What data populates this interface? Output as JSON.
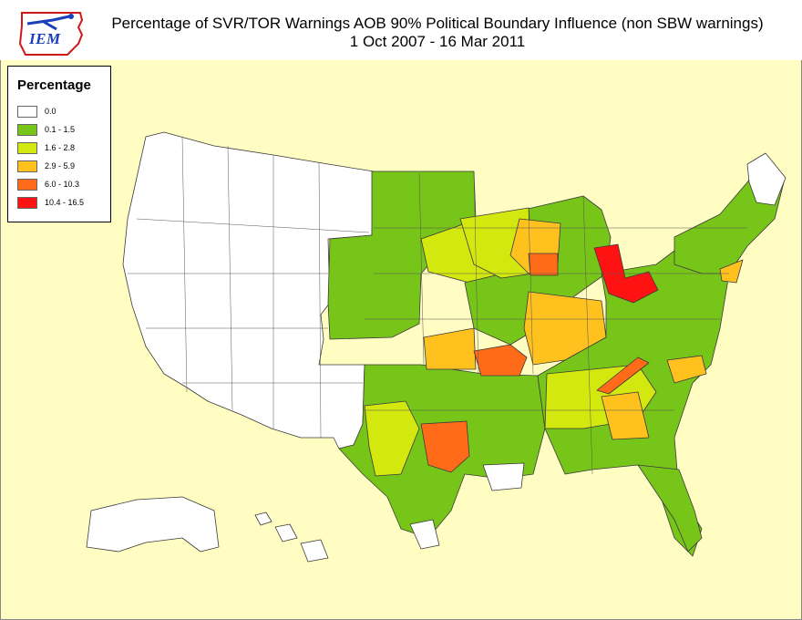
{
  "title": {
    "line1": "Percentage of SVR/TOR Warnings AOB 90% Political Boundary Influence (non SBW warnings)",
    "line2": "1 Oct 2007 - 16 Mar 2011"
  },
  "logo": {
    "text": "IEM"
  },
  "legend": {
    "title": "Percentage",
    "items": [
      {
        "label": "0.0",
        "color": "#ffffff"
      },
      {
        "label": "0.1 - 1.5",
        "color": "#78c51a"
      },
      {
        "label": "1.6 - 2.8",
        "color": "#d2e80f"
      },
      {
        "label": "2.9 - 5.9",
        "color": "#fec11e"
      },
      {
        "label": "6.0 - 10.3",
        "color": "#ff6b18"
      },
      {
        "label": "10.4 - 16.5",
        "color": "#ff1212"
      }
    ]
  },
  "colors": {
    "background": "#fffdc2",
    "outline": "#3a3a3a"
  },
  "map": {
    "projection": "conus-lambert",
    "regions": [
      "west",
      "central",
      "south",
      "midwest",
      "east",
      "northeast",
      "alaska",
      "hawaii"
    ]
  }
}
